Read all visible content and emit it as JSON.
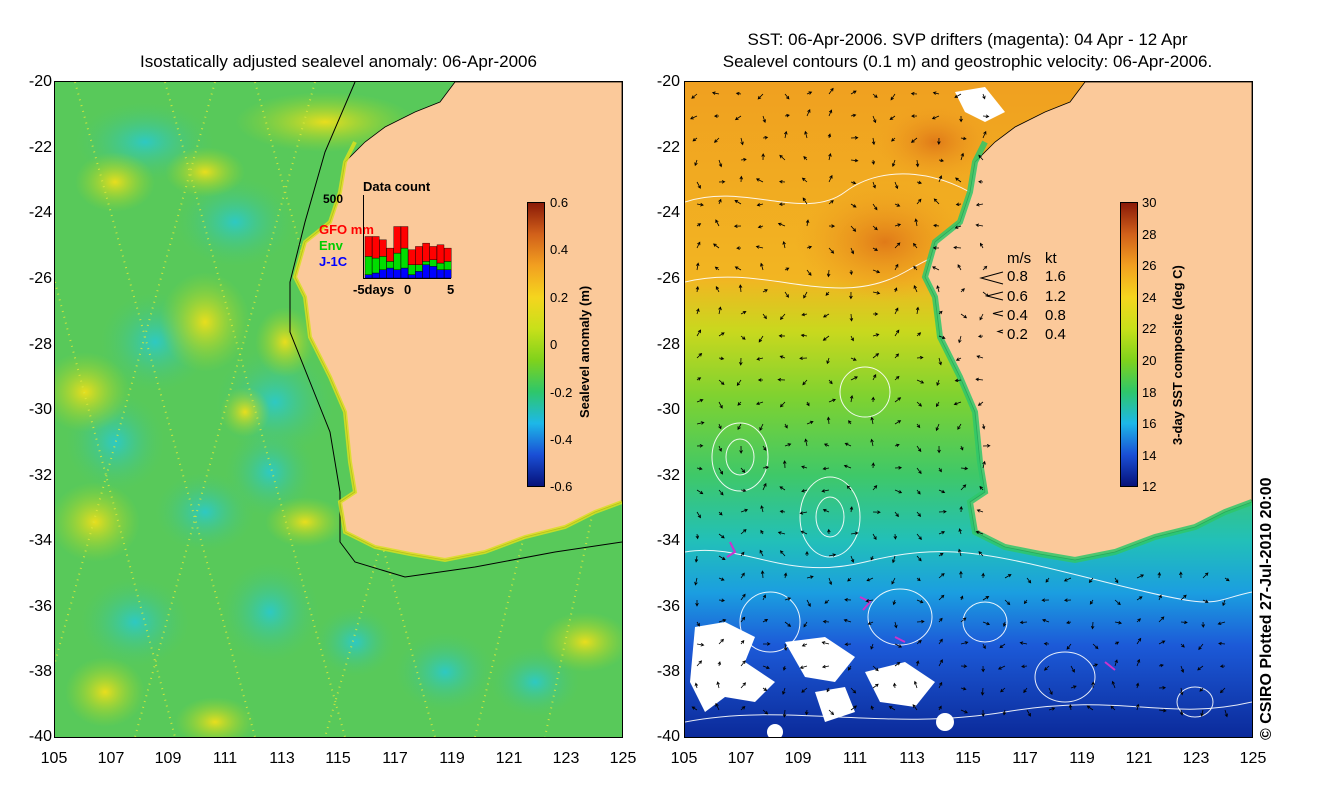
{
  "left_panel": {
    "title": "Isostatically adjusted sealevel anomaly: 06-Apr-2006",
    "colorbar": {
      "title": "Sealevel anomaly (m)",
      "ticks": [
        "0.6",
        "0.4",
        "0.2",
        "0",
        "-0.2",
        "-0.4",
        "-0.6"
      ],
      "colors": [
        "#06127a",
        "#1a4fd6",
        "#1db8e8",
        "#2ec76a",
        "#7fd21c",
        "#c8e01a",
        "#f5d51e",
        "#f2a020",
        "#d2611a",
        "#8a1a08"
      ]
    },
    "inset": {
      "title": "Data count",
      "y_tick": "500",
      "x_ticks": [
        "-5days",
        "0",
        "5"
      ],
      "legend": [
        {
          "label": "GFO mm",
          "color": "#ff0000"
        },
        {
          "label": "Env",
          "color": "#00dd00"
        },
        {
          "label": "J-1C",
          "color": "#0000ff"
        }
      ],
      "counts": [
        {
          "gfo": 120,
          "env": 110,
          "j1c": 20
        },
        {
          "gfo": 130,
          "env": 90,
          "j1c": 30
        },
        {
          "gfo": 100,
          "env": 80,
          "j1c": 50
        },
        {
          "gfo": 80,
          "env": 40,
          "j1c": 60
        },
        {
          "gfo": 160,
          "env": 100,
          "j1c": 50
        },
        {
          "gfo": 130,
          "env": 120,
          "j1c": 60
        },
        {
          "gfo": 90,
          "env": 60,
          "j1c": 20
        },
        {
          "gfo": 110,
          "env": 40,
          "j1c": 40
        },
        {
          "gfo": 110,
          "env": 20,
          "j1c": 80
        },
        {
          "gfo": 80,
          "env": 40,
          "j1c": 70
        },
        {
          "gfo": 110,
          "env": 40,
          "j1c": 50
        },
        {
          "gfo": 80,
          "env": 50,
          "j1c": 50
        }
      ]
    }
  },
  "right_panel": {
    "title_line1": "SST: 06-Apr-2006. SVP drifters (magenta): 04 Apr - 12 Apr",
    "title_line2": "Sealevel contours (0.1 m) and geostrophic velocity: 06-Apr-2006.",
    "colorbar": {
      "title": "3-day SST composite (deg C)",
      "ticks": [
        "30",
        "28",
        "26",
        "24",
        "22",
        "20",
        "18",
        "16",
        "14",
        "12"
      ],
      "colors": [
        "#06127a",
        "#1a4fd6",
        "#1db8e8",
        "#2ec76a",
        "#7fd21c",
        "#c8e01a",
        "#f5d51e",
        "#f2a020",
        "#d2611a",
        "#8a1a08"
      ]
    },
    "velocity_legend": {
      "header_ms": "m/s",
      "header_kt": "kt",
      "rows": [
        {
          "ms": "0.8",
          "kt": "1.6"
        },
        {
          "ms": "0.6",
          "kt": "1.2"
        },
        {
          "ms": "0.4",
          "kt": "0.8"
        },
        {
          "ms": "0.2",
          "kt": "0.4"
        }
      ]
    }
  },
  "axes": {
    "lat_ticks": [
      "-20",
      "-22",
      "-24",
      "-26",
      "-28",
      "-30",
      "-32",
      "-34",
      "-36",
      "-38",
      "-40"
    ],
    "lon_ticks": [
      "105",
      "107",
      "109",
      "111",
      "113",
      "115",
      "117",
      "119",
      "121",
      "123",
      "125"
    ]
  },
  "colors": {
    "land": "#fbc99a",
    "sea_left": "#58c95a",
    "sea_right_warm": "#f3a224",
    "sea_right_cold": "#1c5ad8"
  },
  "copyright": "© CSIRO Plotted 27-Jul-2010 20:00"
}
